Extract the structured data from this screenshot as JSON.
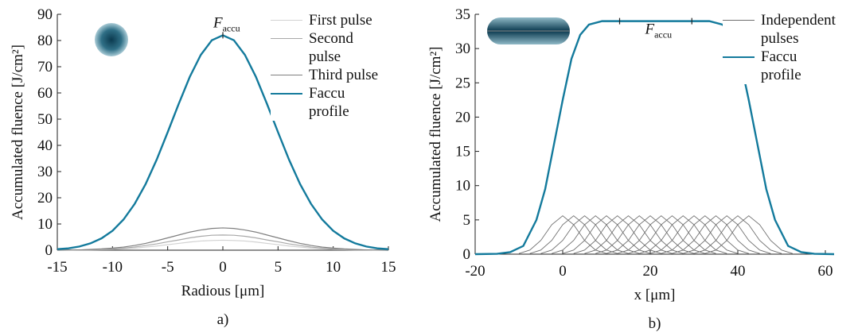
{
  "chart_data": [
    {
      "type": "line",
      "label": "a)",
      "xlabel": "Radious [μm]",
      "ylabel": "Accumulated fluence [J/cm²]",
      "xlim": [
        -15,
        15
      ],
      "xticks": [
        -15,
        -10,
        -5,
        0,
        5,
        10,
        15
      ],
      "ylim": [
        0,
        90
      ],
      "yticks": [
        0,
        10,
        20,
        30,
        40,
        50,
        60,
        70,
        80,
        90
      ],
      "grid": false,
      "legend": "upper right",
      "x": [
        -15,
        -14,
        -13,
        -12,
        -11,
        -10,
        -9,
        -8,
        -7,
        -6,
        -5,
        -4,
        -3,
        -2,
        -1,
        0,
        1,
        2,
        3,
        4,
        5,
        6,
        7,
        8,
        9,
        10,
        11,
        12,
        13,
        14,
        15
      ],
      "series": [
        {
          "name": "First pulse",
          "color": "#d2d2d2",
          "values": [
            0,
            0,
            0.1,
            0.1,
            0.2,
            0.3,
            0.5,
            0.8,
            1.2,
            1.6,
            2.1,
            2.6,
            3.1,
            3.5,
            3.7,
            3.8,
            3.7,
            3.5,
            3.1,
            2.6,
            2.1,
            1.6,
            1.2,
            0.8,
            0.5,
            0.3,
            0.2,
            0.1,
            0.1,
            0,
            0
          ]
        },
        {
          "name": "Second pulse",
          "color": "#a9a9a9",
          "values": [
            0,
            0.1,
            0.1,
            0.2,
            0.3,
            0.5,
            0.8,
            1.2,
            1.8,
            2.4,
            3.2,
            3.9,
            4.7,
            5.3,
            5.7,
            5.8,
            5.7,
            5.3,
            4.7,
            3.9,
            3.2,
            2.4,
            1.8,
            1.2,
            0.8,
            0.5,
            0.3,
            0.2,
            0.1,
            0.1,
            0
          ]
        },
        {
          "name": "Third pulse",
          "color": "#7f7f7f",
          "values": [
            0,
            0.1,
            0.1,
            0.3,
            0.5,
            0.8,
            1.2,
            1.8,
            2.6,
            3.6,
            4.7,
            5.8,
            6.9,
            7.7,
            8.3,
            8.5,
            8.3,
            7.7,
            6.9,
            5.8,
            4.7,
            3.6,
            2.6,
            1.8,
            1.2,
            0.8,
            0.5,
            0.3,
            0.1,
            0.1,
            0
          ]
        },
        {
          "name": "Faccu profile",
          "color": "#137a9c",
          "values": [
            0.4,
            0.7,
            1.4,
            2.6,
            4.5,
            7.4,
            11.7,
            17.6,
            25.2,
            34.5,
            45.0,
            55.8,
            66.1,
            74.5,
            80.1,
            82,
            80.1,
            74.5,
            66.1,
            55.8,
            45.0,
            34.5,
            25.2,
            17.6,
            11.7,
            7.4,
            4.5,
            2.6,
            1.4,
            0.7,
            0.4
          ]
        }
      ],
      "annotation": {
        "text": "F",
        "sub": "accu",
        "x": 0,
        "y": 82,
        "marks": [
          {
            "x": 0,
            "y": 82
          }
        ]
      }
    },
    {
      "type": "line",
      "label": "b)",
      "xlabel": "x [μm]",
      "ylabel": "Accumulated fluence [J/cm²]",
      "xlim": [
        -20,
        62
      ],
      "xticks": [
        -20,
        0,
        20,
        40,
        60
      ],
      "ylim": [
        0,
        35
      ],
      "yticks": [
        0,
        5,
        10,
        15,
        20,
        25,
        30,
        35
      ],
      "grid": false,
      "legend": "upper right",
      "series": [
        {
          "name": "Independent pulses",
          "color": "#6e6e6e",
          "lines": [
            {
              "x": [
                -10,
                -7.5,
                -5,
                -2.5,
                0,
                2.5,
                5,
                7.5,
                10
              ],
              "values": [
                0.1,
                0.6,
                2.0,
                4.3,
                5.6,
                4.3,
                2.0,
                0.6,
                0.1
              ]
            },
            {
              "x": [
                -7.5,
                -5,
                -2.5,
                0,
                2.5,
                5,
                7.5,
                10,
                12.5
              ],
              "values": [
                0.1,
                0.6,
                2.0,
                4.3,
                5.6,
                4.3,
                2.0,
                0.6,
                0.1
              ]
            },
            {
              "x": [
                -5,
                -2.5,
                0,
                2.5,
                5,
                7.5,
                10,
                12.5,
                15
              ],
              "values": [
                0.1,
                0.6,
                2.0,
                4.3,
                5.6,
                4.3,
                2.0,
                0.6,
                0.1
              ]
            },
            {
              "x": [
                -2.5,
                0,
                2.5,
                5,
                7.5,
                10,
                12.5,
                15,
                17.5
              ],
              "values": [
                0.1,
                0.6,
                2.0,
                4.3,
                5.6,
                4.3,
                2.0,
                0.6,
                0.1
              ]
            },
            {
              "x": [
                0,
                2.5,
                5,
                7.5,
                10,
                12.5,
                15,
                17.5,
                20
              ],
              "values": [
                0.1,
                0.6,
                2.0,
                4.3,
                5.6,
                4.3,
                2.0,
                0.6,
                0.1
              ]
            },
            {
              "x": [
                2.5,
                5,
                7.5,
                10,
                12.5,
                15,
                17.5,
                20,
                22.5
              ],
              "values": [
                0.1,
                0.6,
                2.0,
                4.3,
                5.6,
                4.3,
                2.0,
                0.6,
                0.1
              ]
            },
            {
              "x": [
                5,
                7.5,
                10,
                12.5,
                15,
                17.5,
                20,
                22.5,
                25
              ],
              "values": [
                0.1,
                0.6,
                2.0,
                4.3,
                5.6,
                4.3,
                2.0,
                0.6,
                0.1
              ]
            },
            {
              "x": [
                7.5,
                10,
                12.5,
                15,
                17.5,
                20,
                22.5,
                25,
                27.5
              ],
              "values": [
                0.1,
                0.6,
                2.0,
                4.3,
                5.6,
                4.3,
                2.0,
                0.6,
                0.1
              ]
            },
            {
              "x": [
                10,
                12.5,
                15,
                17.5,
                20,
                22.5,
                25,
                27.5,
                30
              ],
              "values": [
                0.1,
                0.6,
                2.0,
                4.3,
                5.6,
                4.3,
                2.0,
                0.6,
                0.1
              ]
            },
            {
              "x": [
                12.5,
                15,
                17.5,
                20,
                22.5,
                25,
                27.5,
                30,
                32.5
              ],
              "values": [
                0.1,
                0.6,
                2.0,
                4.3,
                5.6,
                4.3,
                2.0,
                0.6,
                0.1
              ]
            },
            {
              "x": [
                15,
                17.5,
                20,
                22.5,
                25,
                27.5,
                30,
                32.5,
                35
              ],
              "values": [
                0.1,
                0.6,
                2.0,
                4.3,
                5.6,
                4.3,
                2.0,
                0.6,
                0.1
              ]
            },
            {
              "x": [
                17.5,
                20,
                22.5,
                25,
                27.5,
                30,
                32.5,
                35,
                37.5
              ],
              "values": [
                0.1,
                0.6,
                2.0,
                4.3,
                5.6,
                4.3,
                2.0,
                0.6,
                0.1
              ]
            },
            {
              "x": [
                20,
                22.5,
                25,
                27.5,
                30,
                32.5,
                35,
                37.5,
                40
              ],
              "values": [
                0.1,
                0.6,
                2.0,
                4.3,
                5.6,
                4.3,
                2.0,
                0.6,
                0.1
              ]
            },
            {
              "x": [
                22.5,
                25,
                27.5,
                30,
                32.5,
                35,
                37.5,
                40,
                42.5
              ],
              "values": [
                0.1,
                0.6,
                2.0,
                4.3,
                5.6,
                4.3,
                2.0,
                0.6,
                0.1
              ]
            },
            {
              "x": [
                25,
                27.5,
                30,
                32.5,
                35,
                37.5,
                40,
                42.5,
                45
              ],
              "values": [
                0.1,
                0.6,
                2.0,
                4.3,
                5.6,
                4.3,
                2.0,
                0.6,
                0.1
              ]
            },
            {
              "x": [
                27.5,
                30,
                32.5,
                35,
                37.5,
                40,
                42.5,
                45,
                47.5
              ],
              "values": [
                0.1,
                0.6,
                2.0,
                4.3,
                5.6,
                4.3,
                2.0,
                0.6,
                0.1
              ]
            },
            {
              "x": [
                30,
                32.5,
                35,
                37.5,
                40,
                42.5,
                45,
                47.5,
                50
              ],
              "values": [
                0.1,
                0.6,
                2.0,
                4.3,
                5.6,
                4.3,
                2.0,
                0.6,
                0.1
              ]
            },
            {
              "x": [
                32.5,
                35,
                37.5,
                40,
                42.5,
                45,
                47.5,
                50,
                52.5
              ],
              "values": [
                0.1,
                0.6,
                2.0,
                4.3,
                5.6,
                4.3,
                2.0,
                0.6,
                0.1
              ]
            }
          ]
        },
        {
          "name": "Faccu profile",
          "color": "#137a9c",
          "x": [
            -20,
            -15,
            -12,
            -9,
            -6,
            -4,
            -2,
            0,
            2,
            4,
            6,
            9,
            15,
            21,
            27,
            33.5,
            36.5,
            38.5,
            40.5,
            42.5,
            44.5,
            46.5,
            48.5,
            51.5,
            54.5,
            57.5,
            62
          ],
          "values": [
            0,
            0.05,
            0.3,
            1.2,
            5,
            9.5,
            16,
            22.5,
            28.5,
            32,
            33.5,
            34,
            34,
            34,
            34,
            34,
            33.5,
            32,
            28.5,
            22.5,
            16,
            9.5,
            5,
            1.2,
            0.3,
            0.05,
            0
          ]
        }
      ],
      "annotation": {
        "text": "F",
        "sub": "accu",
        "x": 21,
        "y": 31,
        "marks": [
          {
            "x": 13,
            "y": 34
          },
          {
            "x": 29.5,
            "y": 34
          }
        ]
      }
    }
  ]
}
